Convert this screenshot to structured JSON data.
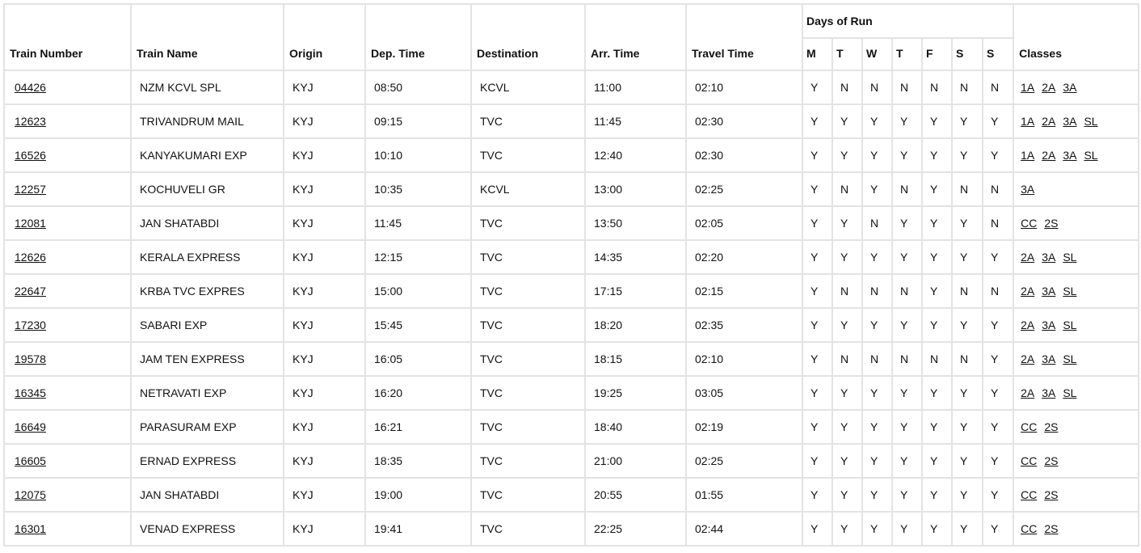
{
  "headers": {
    "train_number": "Train Number",
    "train_name": "Train Name",
    "origin": "Origin",
    "dep_time": "Dep. Time",
    "destination": "Destination",
    "arr_time": "Arr. Time",
    "travel_time": "Travel Time",
    "days_of_run": "Days of Run",
    "days": [
      "M",
      "T",
      "W",
      "T",
      "F",
      "S",
      "S"
    ],
    "classes": "Classes"
  },
  "rows": [
    {
      "number": "04426",
      "name": "NZM KCVL SPL",
      "origin": "KYJ",
      "dep": "08:50",
      "dest": "KCVL",
      "arr": "11:00",
      "travel": "02:10",
      "days": [
        "Y",
        "N",
        "N",
        "N",
        "N",
        "N",
        "N"
      ],
      "classes": [
        "1A",
        "2A",
        "3A"
      ]
    },
    {
      "number": "12623",
      "name": "TRIVANDRUM MAIL",
      "origin": "KYJ",
      "dep": "09:15",
      "dest": "TVC",
      "arr": "11:45",
      "travel": "02:30",
      "days": [
        "Y",
        "Y",
        "Y",
        "Y",
        "Y",
        "Y",
        "Y"
      ],
      "classes": [
        "1A",
        "2A",
        "3A",
        "SL"
      ]
    },
    {
      "number": "16526",
      "name": "KANYAKUMARI EXP",
      "origin": "KYJ",
      "dep": "10:10",
      "dest": "TVC",
      "arr": "12:40",
      "travel": "02:30",
      "days": [
        "Y",
        "Y",
        "Y",
        "Y",
        "Y",
        "Y",
        "Y"
      ],
      "classes": [
        "1A",
        "2A",
        "3A",
        "SL"
      ]
    },
    {
      "number": "12257",
      "name": "KOCHUVELI GR",
      "origin": "KYJ",
      "dep": "10:35",
      "dest": "KCVL",
      "arr": "13:00",
      "travel": "02:25",
      "days": [
        "Y",
        "N",
        "Y",
        "N",
        "Y",
        "N",
        "N"
      ],
      "classes": [
        "3A"
      ]
    },
    {
      "number": "12081",
      "name": "JAN SHATABDI",
      "origin": "KYJ",
      "dep": "11:45",
      "dest": "TVC",
      "arr": "13:50",
      "travel": "02:05",
      "days": [
        "Y",
        "Y",
        "N",
        "Y",
        "Y",
        "Y",
        "N"
      ],
      "classes": [
        "CC",
        "2S"
      ]
    },
    {
      "number": "12626",
      "name": "KERALA EXPRESS",
      "origin": "KYJ",
      "dep": "12:15",
      "dest": "TVC",
      "arr": "14:35",
      "travel": "02:20",
      "days": [
        "Y",
        "Y",
        "Y",
        "Y",
        "Y",
        "Y",
        "Y"
      ],
      "classes": [
        "2A",
        "3A",
        "SL"
      ]
    },
    {
      "number": "22647",
      "name": "KRBA TVC EXPRES",
      "origin": "KYJ",
      "dep": "15:00",
      "dest": "TVC",
      "arr": "17:15",
      "travel": "02:15",
      "days": [
        "Y",
        "N",
        "N",
        "N",
        "Y",
        "N",
        "N"
      ],
      "classes": [
        "2A",
        "3A",
        "SL"
      ]
    },
    {
      "number": "17230",
      "name": "SABARI EXP",
      "origin": "KYJ",
      "dep": "15:45",
      "dest": "TVC",
      "arr": "18:20",
      "travel": "02:35",
      "days": [
        "Y",
        "Y",
        "Y",
        "Y",
        "Y",
        "Y",
        "Y"
      ],
      "classes": [
        "2A",
        "3A",
        "SL"
      ]
    },
    {
      "number": "19578",
      "name": "JAM TEN EXPRESS",
      "origin": "KYJ",
      "dep": "16:05",
      "dest": "TVC",
      "arr": "18:15",
      "travel": "02:10",
      "days": [
        "Y",
        "N",
        "N",
        "N",
        "N",
        "N",
        "Y"
      ],
      "classes": [
        "2A",
        "3A",
        "SL"
      ]
    },
    {
      "number": "16345",
      "name": "NETRAVATI EXP",
      "origin": "KYJ",
      "dep": "16:20",
      "dest": "TVC",
      "arr": "19:25",
      "travel": "03:05",
      "days": [
        "Y",
        "Y",
        "Y",
        "Y",
        "Y",
        "Y",
        "Y"
      ],
      "classes": [
        "2A",
        "3A",
        "SL"
      ]
    },
    {
      "number": "16649",
      "name": "PARASURAM EXP",
      "origin": "KYJ",
      "dep": "16:21",
      "dest": "TVC",
      "arr": "18:40",
      "travel": "02:19",
      "days": [
        "Y",
        "Y",
        "Y",
        "Y",
        "Y",
        "Y",
        "Y"
      ],
      "classes": [
        "CC",
        "2S"
      ]
    },
    {
      "number": "16605",
      "name": "ERNAD EXPRESS",
      "origin": "KYJ",
      "dep": "18:35",
      "dest": "TVC",
      "arr": "21:00",
      "travel": "02:25",
      "days": [
        "Y",
        "Y",
        "Y",
        "Y",
        "Y",
        "Y",
        "Y"
      ],
      "classes": [
        "CC",
        "2S"
      ]
    },
    {
      "number": "12075",
      "name": "JAN SHATABDI",
      "origin": "KYJ",
      "dep": "19:00",
      "dest": "TVC",
      "arr": "20:55",
      "travel": "01:55",
      "days": [
        "Y",
        "Y",
        "Y",
        "Y",
        "Y",
        "Y",
        "Y"
      ],
      "classes": [
        "CC",
        "2S"
      ]
    },
    {
      "number": "16301",
      "name": "VENAD EXPRESS",
      "origin": "KYJ",
      "dep": "19:41",
      "dest": "TVC",
      "arr": "22:25",
      "travel": "02:44",
      "days": [
        "Y",
        "Y",
        "Y",
        "Y",
        "Y",
        "Y",
        "Y"
      ],
      "classes": [
        "CC",
        "2S"
      ]
    }
  ]
}
